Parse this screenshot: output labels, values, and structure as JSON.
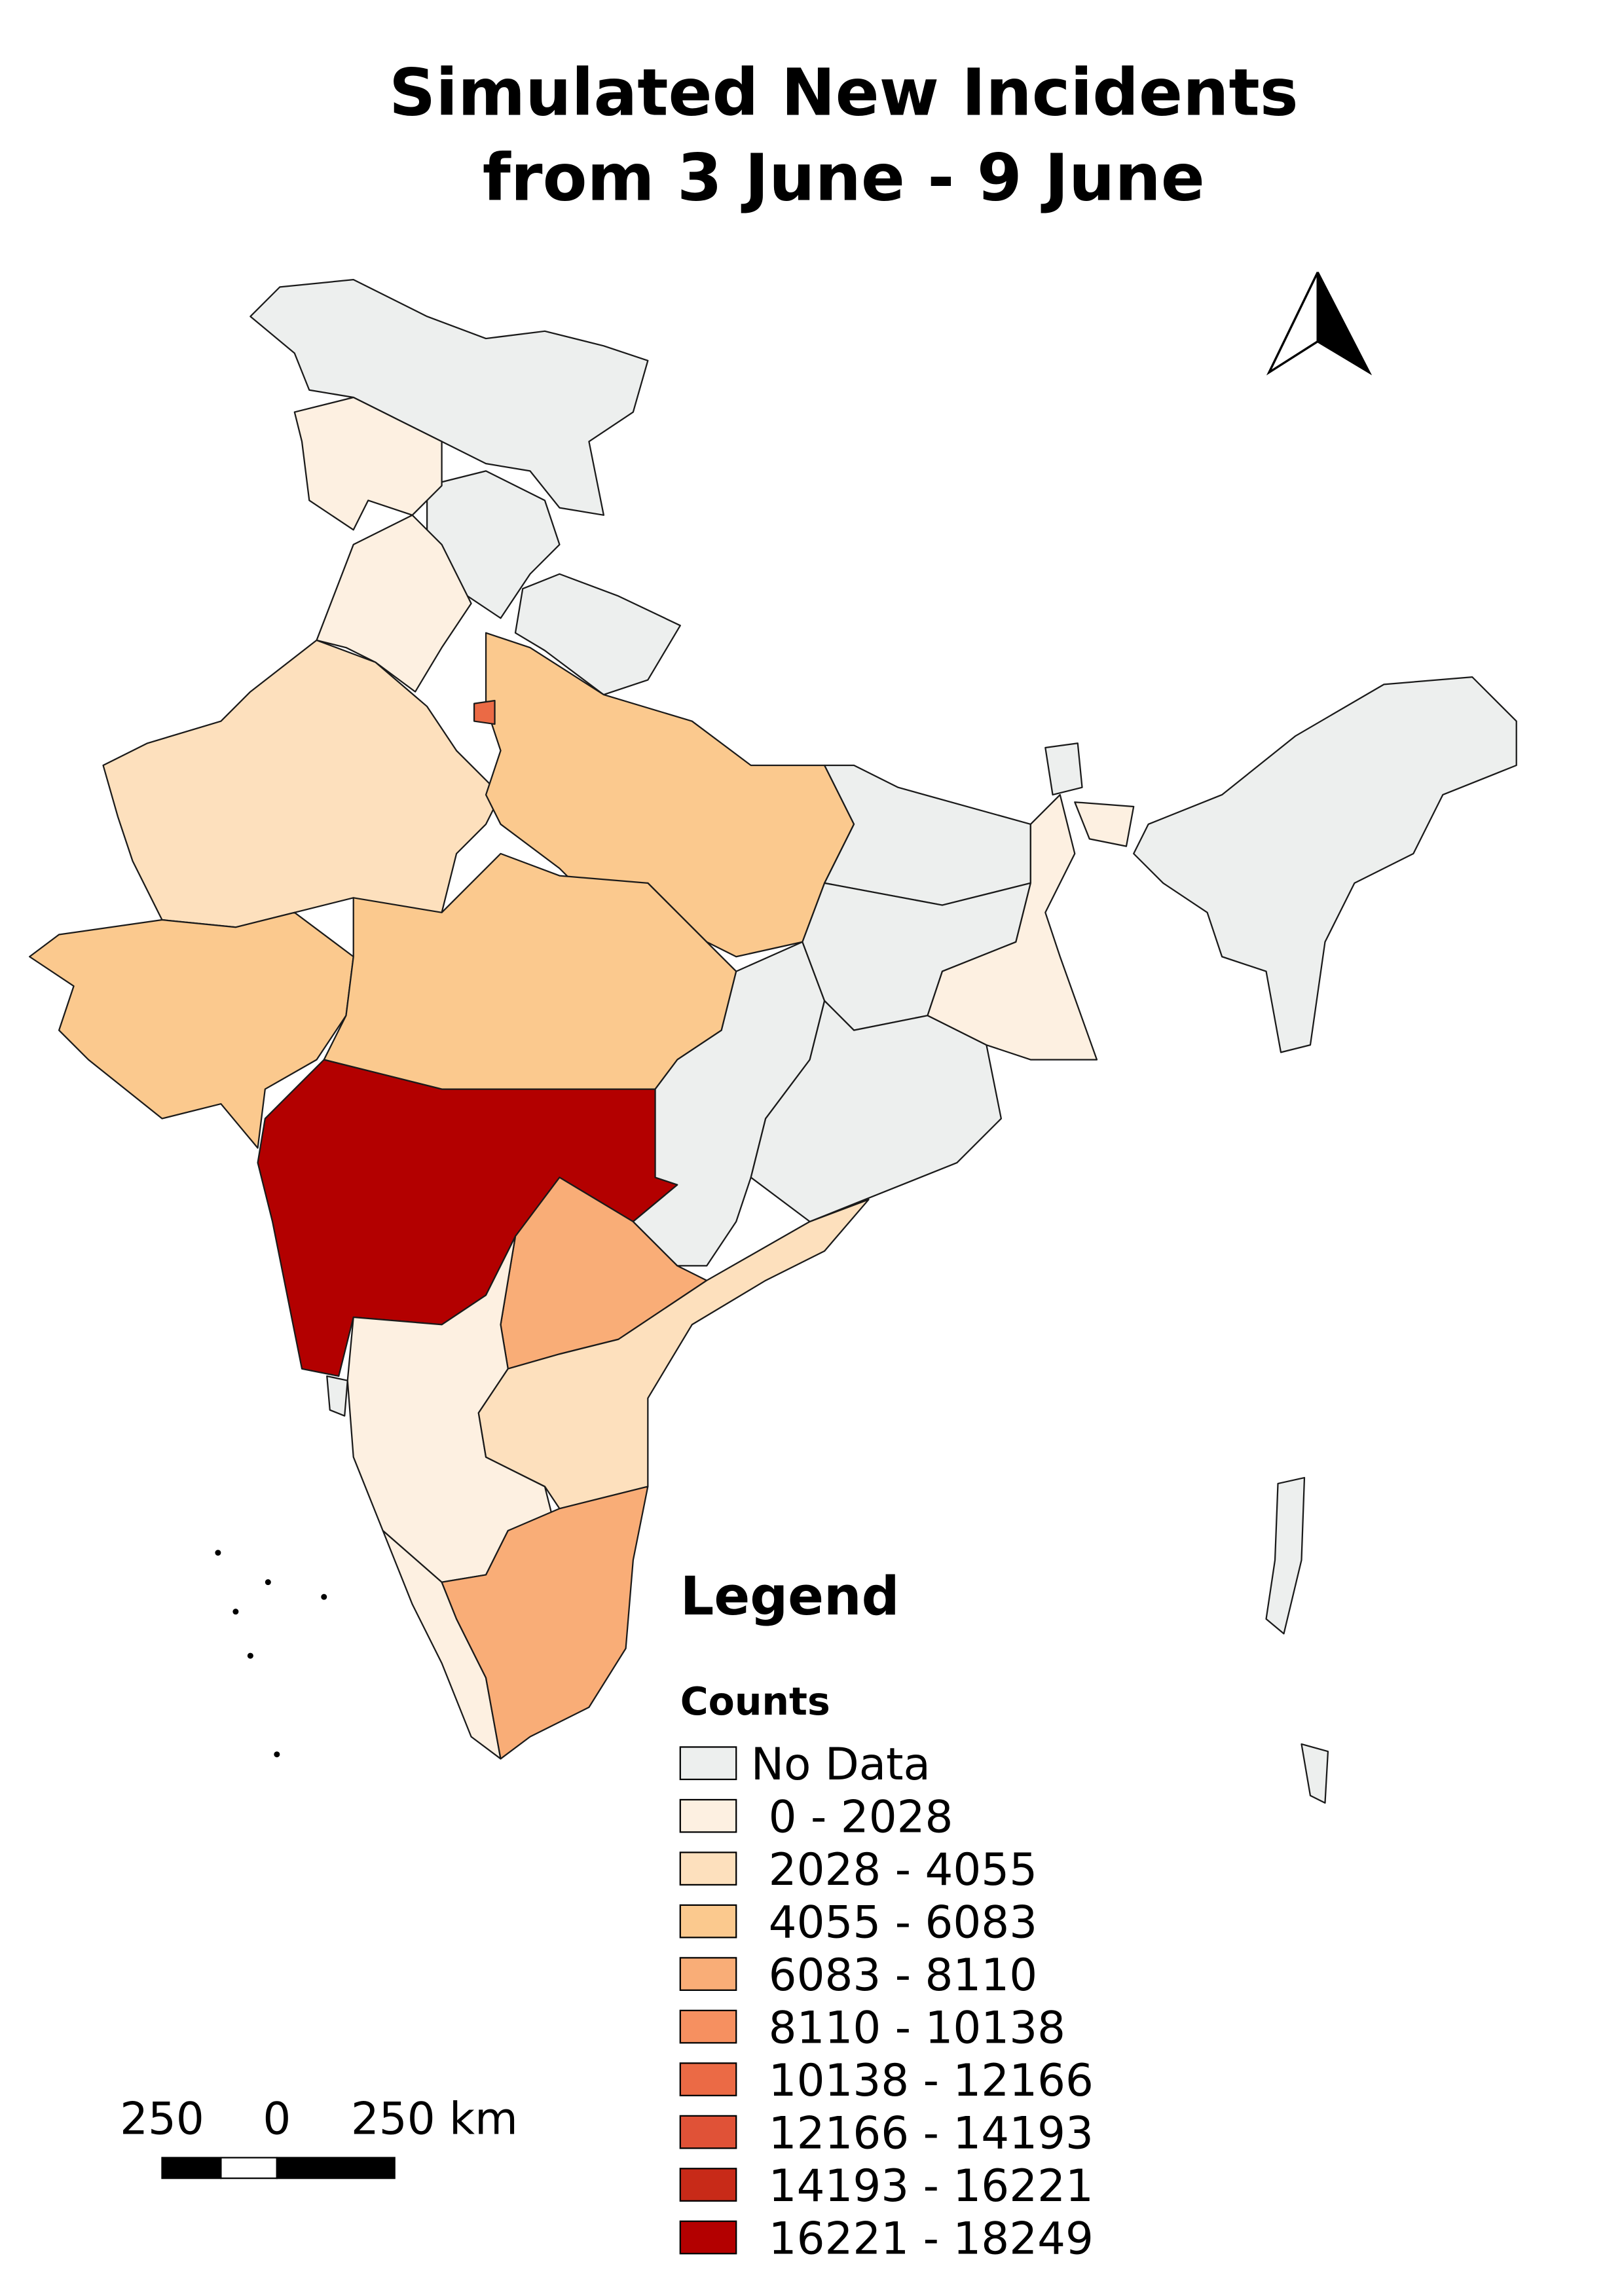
{
  "title": [
    "Simulated New Incidents",
    "from 3 June - 9 June"
  ],
  "legend": {
    "heading": "Legend",
    "subtitle": "Counts",
    "items": [
      {
        "label": "No Data",
        "color": "#edefee"
      },
      {
        "label": "0 - 2028",
        "color": "#fdf0e1"
      },
      {
        "label": "2028 - 4055",
        "color": "#fde0bd"
      },
      {
        "label": "4055 - 6083",
        "color": "#fbc98e"
      },
      {
        "label": "6083 - 8110",
        "color": "#f9ad77"
      },
      {
        "label": "8110 - 10138",
        "color": "#f69060"
      },
      {
        "label": "10138 - 12166",
        "color": "#eb6a45"
      },
      {
        "label": "12166 - 14193",
        "color": "#e05237"
      },
      {
        "label": "14193 - 16221",
        "color": "#c82a18"
      },
      {
        "label": "16221 - 18249",
        "color": "#b30000"
      }
    ]
  },
  "scale_bar": {
    "labels": [
      "250",
      "0",
      "250 km"
    ]
  }
}
